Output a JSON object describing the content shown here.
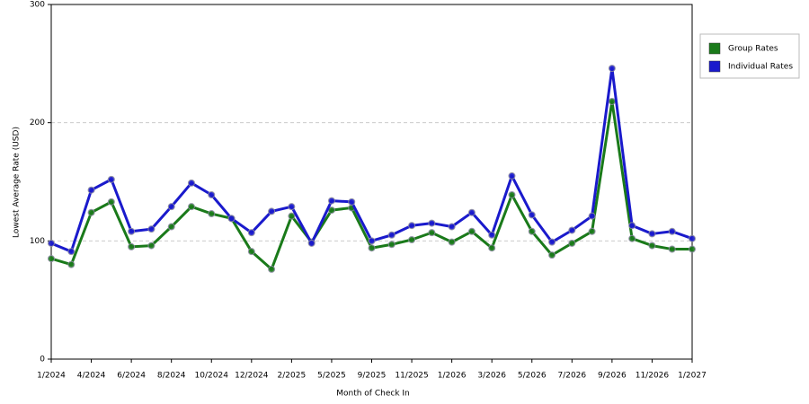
{
  "chart_data": {
    "type": "line",
    "x_label": "Month of Check In",
    "y_label": "Lowest Average Rate (USD)",
    "categories": [
      "1/2024",
      null,
      "4/2024",
      null,
      "6/2024",
      null,
      "8/2024",
      null,
      "10/2024",
      null,
      "12/2024",
      null,
      "2/2025",
      null,
      "5/2025",
      null,
      "9/2025",
      null,
      "11/2025",
      null,
      "1/2026",
      null,
      "3/2026",
      null,
      "5/2026",
      null,
      "7/2026",
      null,
      "9/2026",
      null,
      "11/2026",
      null,
      "1/2027"
    ],
    "series": [
      {
        "name": "Group Rates",
        "color": "#1a7a1a",
        "values": [
          85,
          80,
          124,
          133,
          95,
          96,
          112,
          129,
          123,
          119,
          91,
          76,
          121,
          99,
          126,
          128,
          94,
          97,
          101,
          107,
          99,
          108,
          94,
          139,
          108,
          88,
          98,
          108,
          218,
          102,
          96,
          93,
          93
        ]
      },
      {
        "name": "Individual Rates",
        "color": "#1a1acc",
        "values": [
          98,
          91,
          143,
          152,
          108,
          110,
          129,
          149,
          139,
          119,
          107,
          125,
          129,
          98,
          134,
          133,
          100,
          105,
          113,
          115,
          112,
          124,
          105,
          155,
          122,
          99,
          109,
          121,
          246,
          113,
          106,
          108,
          102
        ]
      }
    ],
    "ylim": [
      0,
      300
    ],
    "yticks": [
      0,
      100,
      200,
      300
    ],
    "grid": true,
    "legend": "right"
  }
}
